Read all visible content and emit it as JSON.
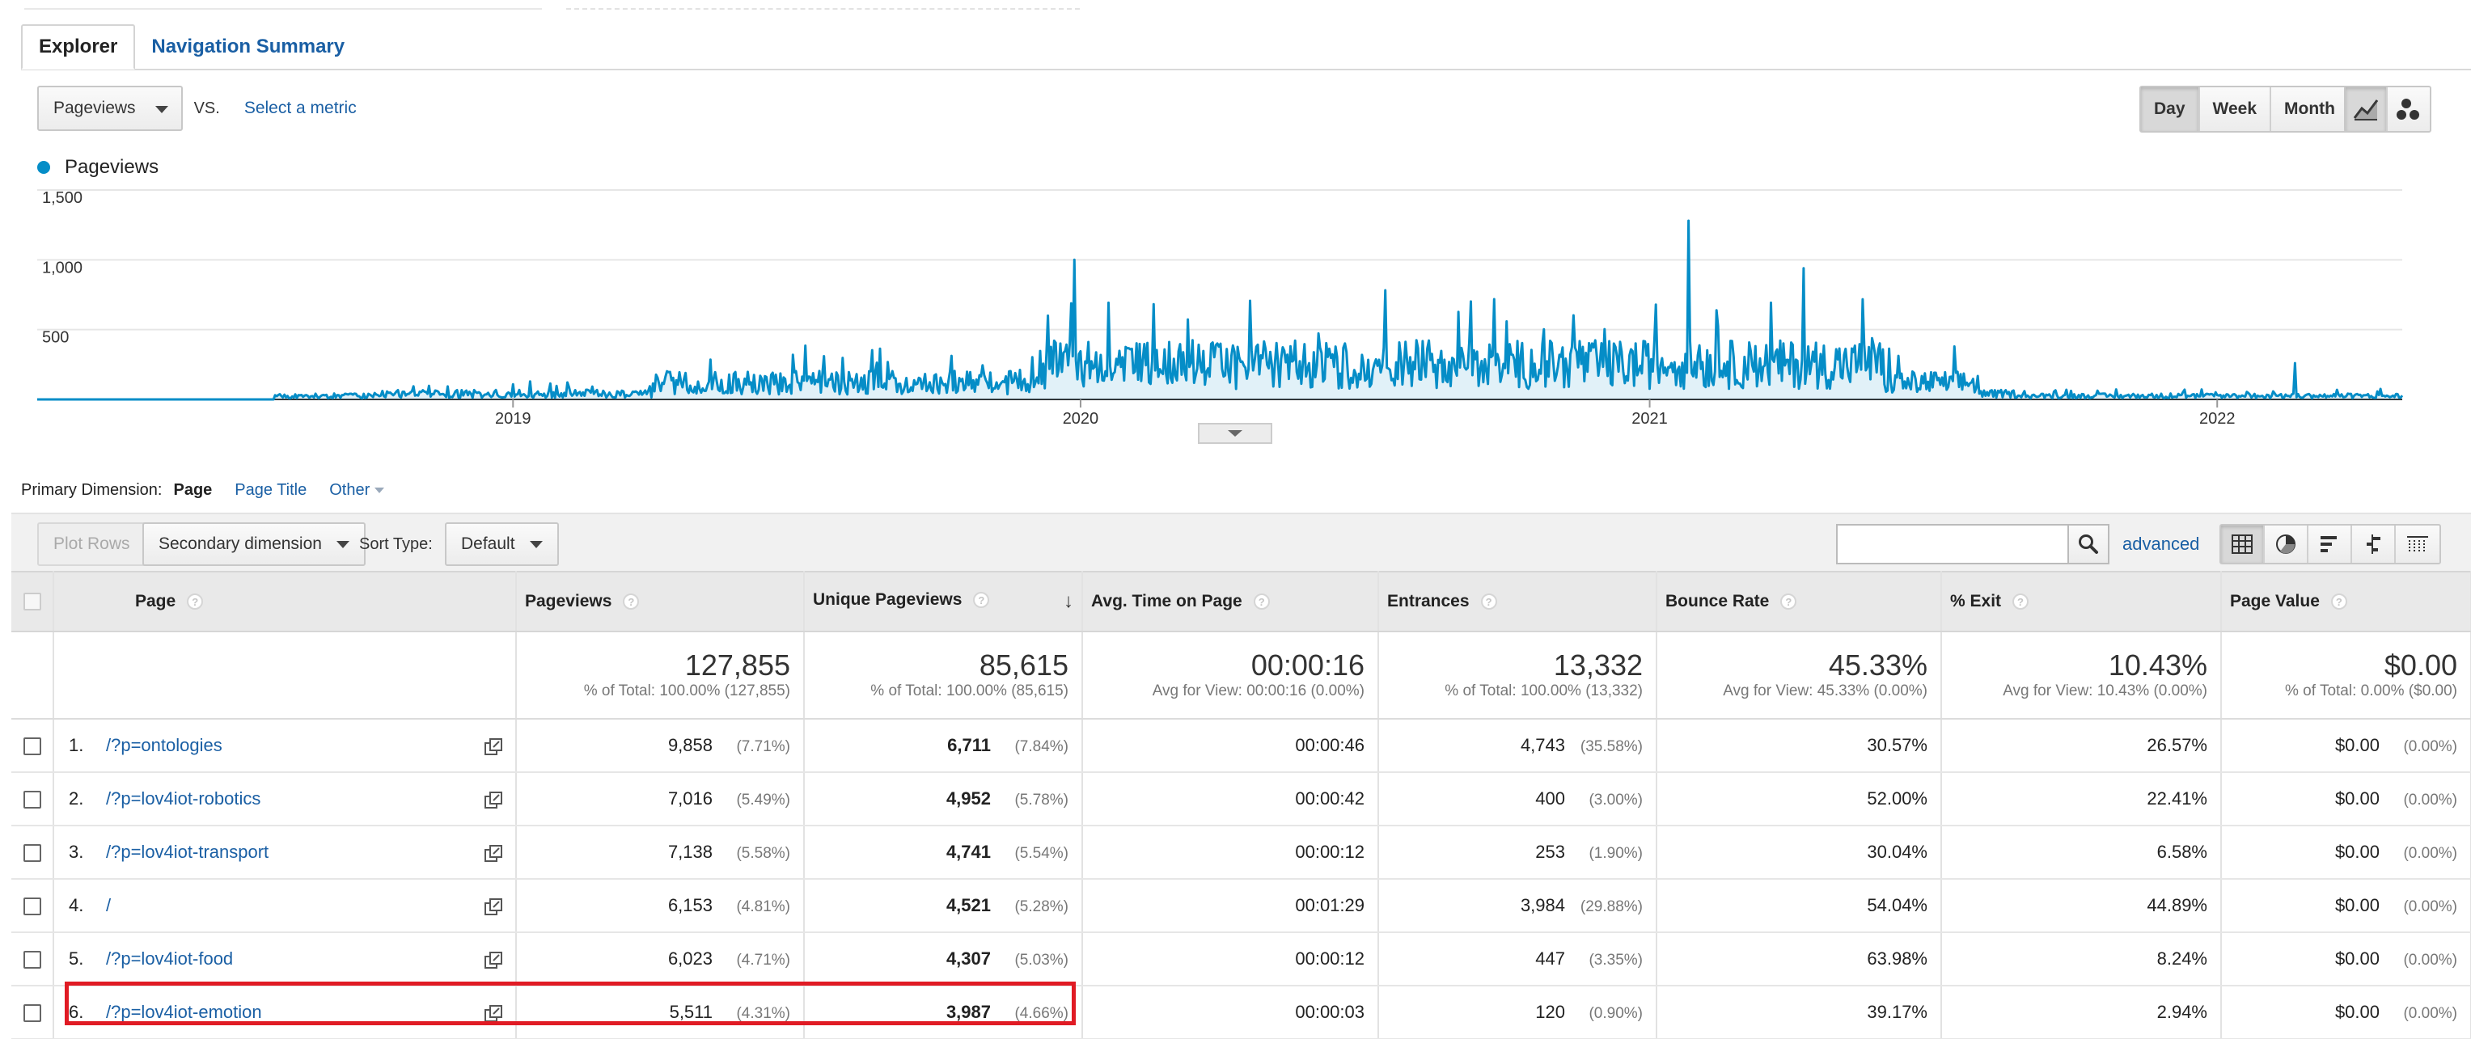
{
  "tabs": [
    {
      "label": "Explorer",
      "active": true
    },
    {
      "label": "Navigation Summary",
      "active": false
    }
  ],
  "metric": {
    "selected": "Pageviews",
    "vs": "VS.",
    "select_metric": "Select a metric"
  },
  "periods": [
    {
      "label": "Day",
      "active": true
    },
    {
      "label": "Week",
      "active": false
    },
    {
      "label": "Month",
      "active": false
    }
  ],
  "chart_type_icons": [
    "line-chart-icon",
    "motion-chart-icon"
  ],
  "legend": {
    "label": "Pageviews",
    "color": "#058dc7"
  },
  "chart_data": {
    "type": "line",
    "series": [
      {
        "name": "Pageviews",
        "color": "#058dc7"
      }
    ],
    "ylim": [
      0,
      1500
    ],
    "y_ticks": [
      "1,500",
      "1,000",
      "500"
    ],
    "x_tick_labels": [
      "2019",
      "2020",
      "2021",
      "2022"
    ],
    "x_range": [
      "2018-03",
      "2022-04"
    ],
    "notable_peaks": [
      {
        "x": "2019-12-28",
        "y": 1000
      },
      {
        "x": "2021-01-26",
        "y": 1280
      },
      {
        "x": "2021-04-10",
        "y": 940
      },
      {
        "x": "2022-02-20",
        "y": 260
      }
    ],
    "grid": true
  },
  "primary_dimension": {
    "label": "Primary Dimension:",
    "current": "Page",
    "options": [
      "Page Title",
      "Other"
    ]
  },
  "toolbar": {
    "plot_rows": "Plot Rows",
    "secondary_dimension": "Secondary dimension",
    "sort_type_label": "Sort Type:",
    "sort_type_value": "Default",
    "search_placeholder": "",
    "advanced": "advanced",
    "view_icons": [
      "table-view-icon",
      "pie-view-icon",
      "bar-view-icon",
      "comparison-view-icon",
      "pivot-view-icon"
    ]
  },
  "table": {
    "headers": [
      "Page",
      "Pageviews",
      "Unique Pageviews",
      "Avg. Time on Page",
      "Entrances",
      "Bounce Rate",
      "% Exit",
      "Page Value"
    ],
    "sorted_by": "Unique Pageviews",
    "totals": [
      {
        "big": "127,855",
        "small": "% of Total: 100.00% (127,855)"
      },
      {
        "big": "85,615",
        "small": "% of Total: 100.00% (85,615)"
      },
      {
        "big": "00:00:16",
        "small": "Avg for View: 00:00:16 (0.00%)"
      },
      {
        "big": "13,332",
        "small": "% of Total: 100.00% (13,332)"
      },
      {
        "big": "45.33%",
        "small": "Avg for View: 45.33% (0.00%)"
      },
      {
        "big": "10.43%",
        "small": "Avg for View: 10.43% (0.00%)"
      },
      {
        "big": "$0.00",
        "small": "% of Total: 0.00% ($0.00)"
      }
    ],
    "rows": [
      {
        "num": "1.",
        "page": "/?p=ontologies",
        "pageviews": "9,858",
        "pageviews_pct": "(7.71%)",
        "unique": "6,711",
        "unique_pct": "(7.84%)",
        "avg_time": "00:00:46",
        "entrances": "4,743",
        "entrances_pct": "(35.58%)",
        "bounce": "30.57%",
        "exit": "26.57%",
        "value": "$0.00",
        "value_pct": "(0.00%)"
      },
      {
        "num": "2.",
        "page": "/?p=lov4iot-robotics",
        "pageviews": "7,016",
        "pageviews_pct": "(5.49%)",
        "unique": "4,952",
        "unique_pct": "(5.78%)",
        "avg_time": "00:00:42",
        "entrances": "400",
        "entrances_pct": "(3.00%)",
        "bounce": "52.00%",
        "exit": "22.41%",
        "value": "$0.00",
        "value_pct": "(0.00%)"
      },
      {
        "num": "3.",
        "page": "/?p=lov4iot-transport",
        "pageviews": "7,138",
        "pageviews_pct": "(5.58%)",
        "unique": "4,741",
        "unique_pct": "(5.54%)",
        "avg_time": "00:00:12",
        "entrances": "253",
        "entrances_pct": "(1.90%)",
        "bounce": "30.04%",
        "exit": "6.58%",
        "value": "$0.00",
        "value_pct": "(0.00%)"
      },
      {
        "num": "4.",
        "page": "/",
        "pageviews": "6,153",
        "pageviews_pct": "(4.81%)",
        "unique": "4,521",
        "unique_pct": "(5.28%)",
        "avg_time": "00:01:29",
        "entrances": "3,984",
        "entrances_pct": "(29.88%)",
        "bounce": "54.04%",
        "exit": "44.89%",
        "value": "$0.00",
        "value_pct": "(0.00%)"
      },
      {
        "num": "5.",
        "page": "/?p=lov4iot-food",
        "pageviews": "6,023",
        "pageviews_pct": "(4.71%)",
        "unique": "4,307",
        "unique_pct": "(5.03%)",
        "avg_time": "00:00:12",
        "entrances": "447",
        "entrances_pct": "(3.35%)",
        "bounce": "63.98%",
        "exit": "8.24%",
        "value": "$0.00",
        "value_pct": "(0.00%)"
      },
      {
        "num": "6.",
        "page": "/?p=lov4iot-emotion",
        "pageviews": "5,511",
        "pageviews_pct": "(4.31%)",
        "unique": "3,987",
        "unique_pct": "(4.66%)",
        "avg_time": "00:00:03",
        "entrances": "120",
        "entrances_pct": "(0.90%)",
        "bounce": "39.17%",
        "exit": "2.94%",
        "value": "$0.00",
        "value_pct": "(0.00%)"
      }
    ]
  },
  "colors": {
    "link": "#1a5fa4",
    "series": "#058dc7",
    "highlight": "#e01b24"
  }
}
